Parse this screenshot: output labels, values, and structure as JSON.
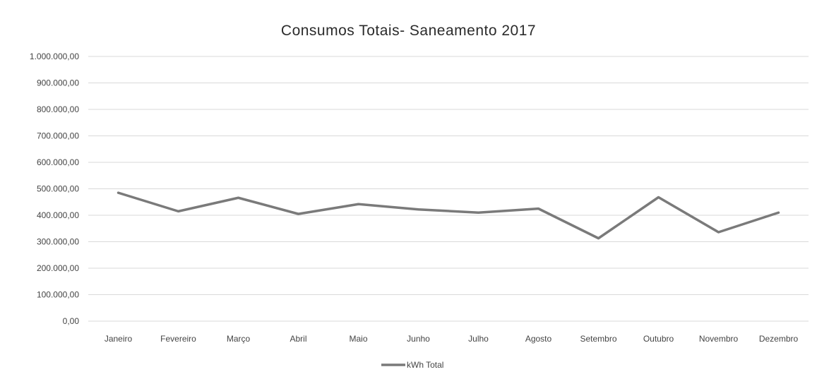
{
  "chart_data": {
    "type": "line",
    "title": "Consumos Totais- Saneamento 2017",
    "categories": [
      "Janeiro",
      "Fevereiro",
      "Março",
      "Abril",
      "Maio",
      "Junho",
      "Julho",
      "Agosto",
      "Setembro",
      "Outubro",
      "Novembro",
      "Dezembro"
    ],
    "series": [
      {
        "name": "kWh Total",
        "values": [
          485000,
          415000,
          466000,
          405000,
          442000,
          422000,
          410000,
          425000,
          313000,
          468000,
          336000,
          410000
        ]
      }
    ],
    "yticks": [
      "0,00",
      "100.000,00",
      "200.000,00",
      "300.000,00",
      "400.000,00",
      "500.000,00",
      "600.000,00",
      "700.000,00",
      "800.000,00",
      "900.000,00",
      "1.000.000,00"
    ],
    "ylim": [
      0,
      1000000
    ],
    "grid": true,
    "legend": "bottom",
    "colors": {
      "series": "#7a7a7a",
      "grid": "#d9d9d9",
      "text": "#444444"
    }
  }
}
